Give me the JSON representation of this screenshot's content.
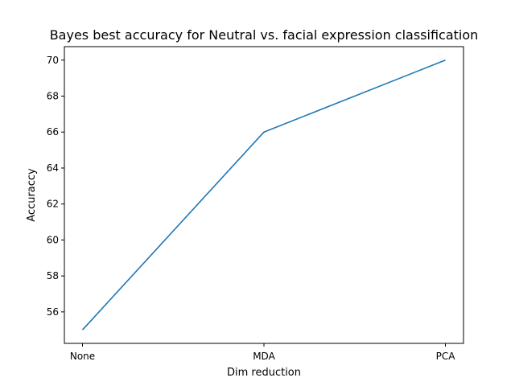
{
  "chart_data": {
    "type": "line",
    "title": "Bayes best accuracy for Neutral vs. facial expression classification",
    "xlabel": "Dim reduction",
    "ylabel": "Accuraccy",
    "categories": [
      "None",
      "MDA",
      "PCA"
    ],
    "series": [
      {
        "values": [
          55,
          66,
          70
        ]
      }
    ],
    "ylim": [
      54.25,
      70.75
    ],
    "yticks": [
      56,
      58,
      60,
      62,
      64,
      66,
      68,
      70
    ],
    "grid": false,
    "colors": {
      "line": "#1f77b4"
    }
  }
}
